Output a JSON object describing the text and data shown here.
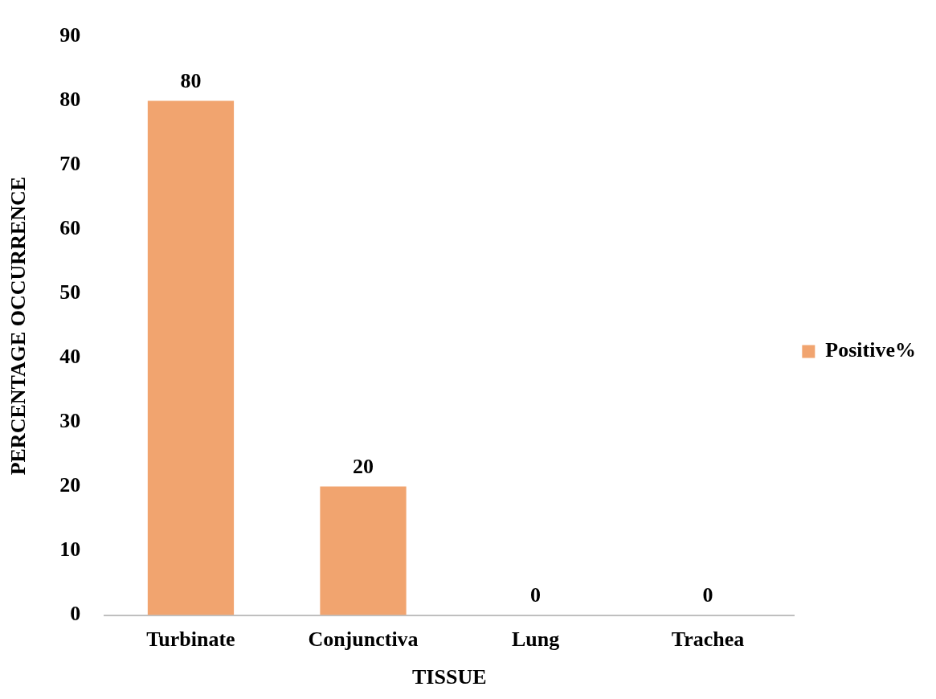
{
  "chart_data": {
    "type": "bar",
    "xlabel": "TISSUE",
    "ylabel": "PERCENTAGE OCCURRENCE",
    "categories": [
      "Turbinate",
      "Conjunctiva",
      "Lung",
      "Trachea"
    ],
    "series": [
      {
        "name": "Positive%",
        "color": "#f1a46f",
        "values": [
          80,
          20,
          0,
          0
        ]
      }
    ],
    "ylim": [
      0,
      90
    ],
    "yticks": [
      0,
      10,
      20,
      30,
      40,
      50,
      60,
      70,
      80,
      90
    ],
    "grid": false,
    "legend": "right",
    "data_labels": true
  }
}
